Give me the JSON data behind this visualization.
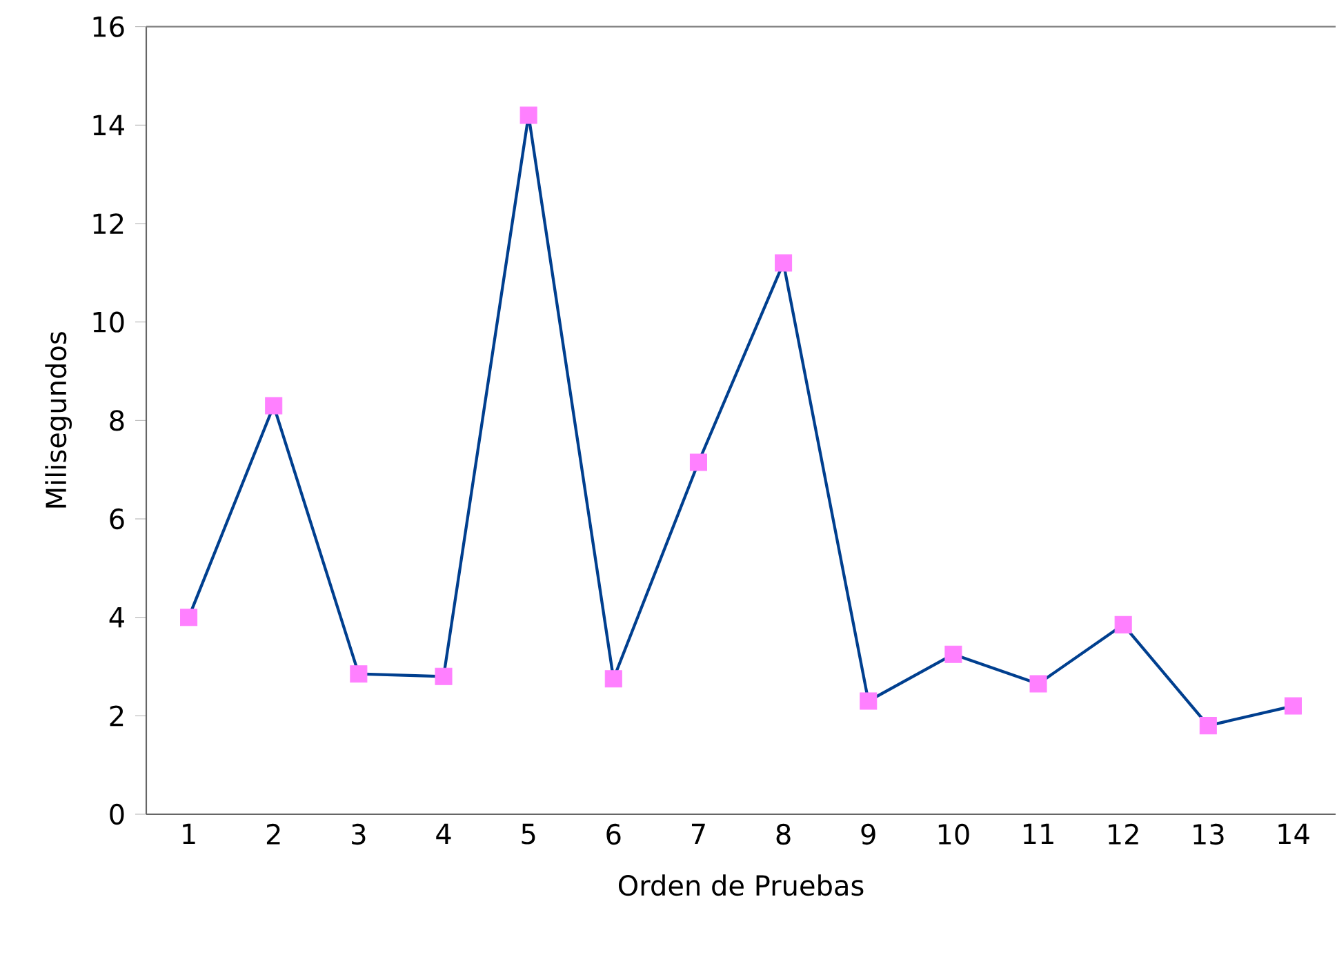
{
  "chart_data": {
    "type": "line",
    "xlabel": "Orden de Pruebas",
    "ylabel": "Milisegundos",
    "categories": [
      "1",
      "2",
      "3",
      "4",
      "5",
      "6",
      "7",
      "8",
      "9",
      "10",
      "11",
      "12",
      "13",
      "14"
    ],
    "values": [
      4.0,
      8.3,
      2.85,
      2.8,
      14.2,
      2.75,
      7.15,
      11.2,
      2.3,
      3.25,
      2.65,
      3.85,
      1.8,
      2.2
    ],
    "color": "#003f8f",
    "colors": [
      "#ff80ff",
      "#ff80ff",
      "#ff80ff",
      "#ff80ff",
      "#ff80ff",
      "#ff80ff",
      "#ff80ff",
      "#ff80ff",
      "#ff80ff",
      "#ff80ff",
      "#ff80ff",
      "#ff80ff",
      "#ff80ff",
      "#ff80ff"
    ],
    "marker": "square",
    "line_style": "solid",
    "ylim": [
      0,
      16
    ],
    "yticks": [
      0,
      2,
      4,
      6,
      8,
      10,
      12,
      14,
      16
    ]
  }
}
